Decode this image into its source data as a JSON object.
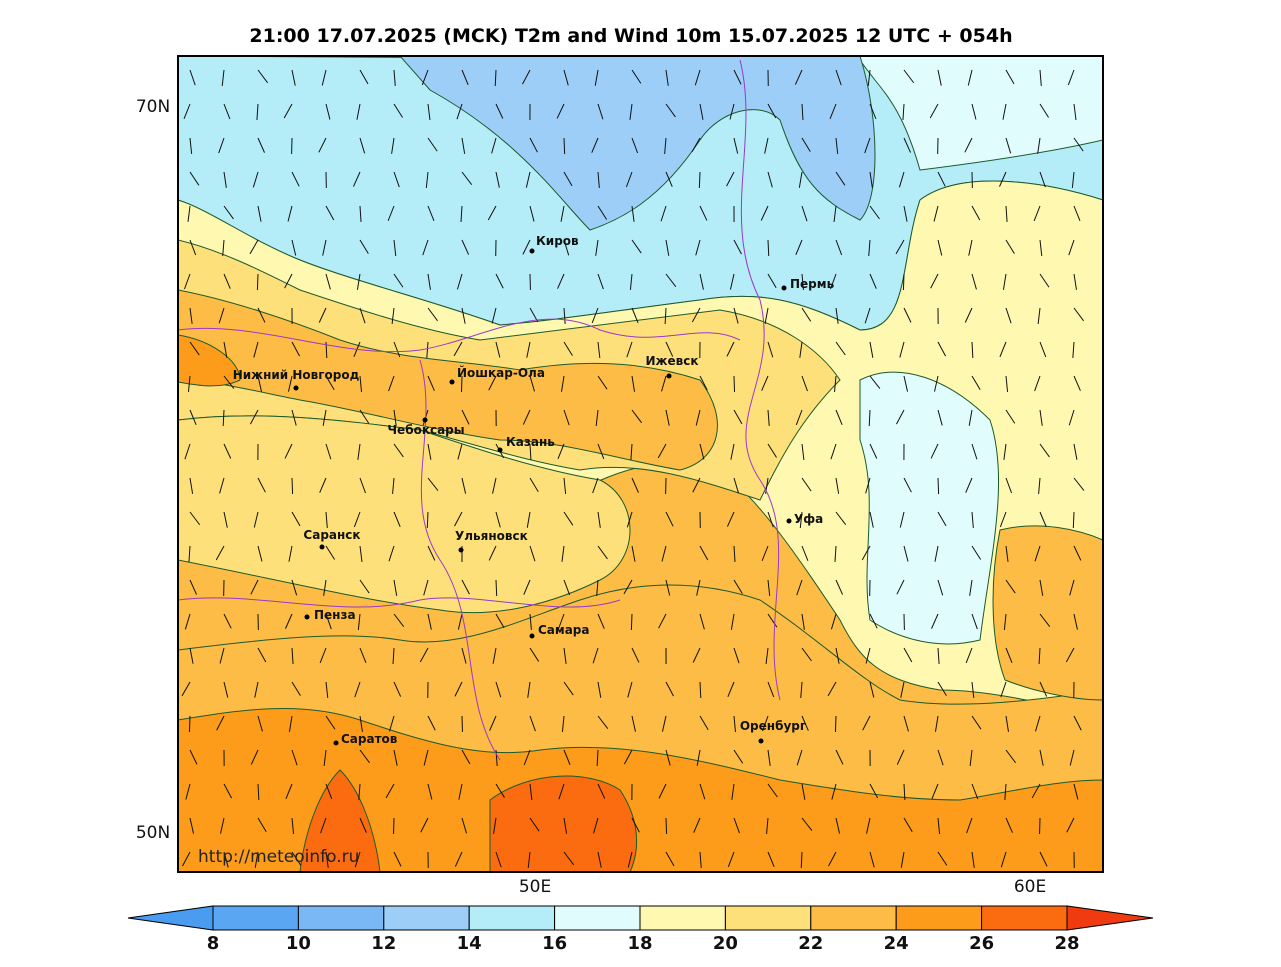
{
  "title": "21:00 17.07.2025 (MCK) T2m and Wind 10m 15.07.2025 12 UTC + 054h",
  "axes": {
    "lat_labels": [
      "70N",
      "50N"
    ],
    "lon_labels": [
      "50E",
      "60E"
    ]
  },
  "cities": [
    "Киров",
    "Пермь",
    "Нижний Новгород",
    "Йошкар-Ола",
    "Ижевск",
    "Чебоксары",
    "Казань",
    "Уфа",
    "Саранск",
    "Ульяновск",
    "Пенза",
    "Самара",
    "Оренбург",
    "Саратов"
  ],
  "watermark": "http://meteoinfo.ru",
  "colorbar": {
    "ticks": [
      8,
      10,
      12,
      14,
      16,
      18,
      20,
      22,
      24,
      26,
      28
    ],
    "colors": [
      "#4a9cf0",
      "#5aa6f2",
      "#7ab8f5",
      "#9ccef8",
      "#b4ecf8",
      "#e0fcfc",
      "#fff8b0",
      "#fee07a",
      "#fcbc45",
      "#fc9c1a",
      "#fb6c10",
      "#f03a10"
    ]
  }
}
